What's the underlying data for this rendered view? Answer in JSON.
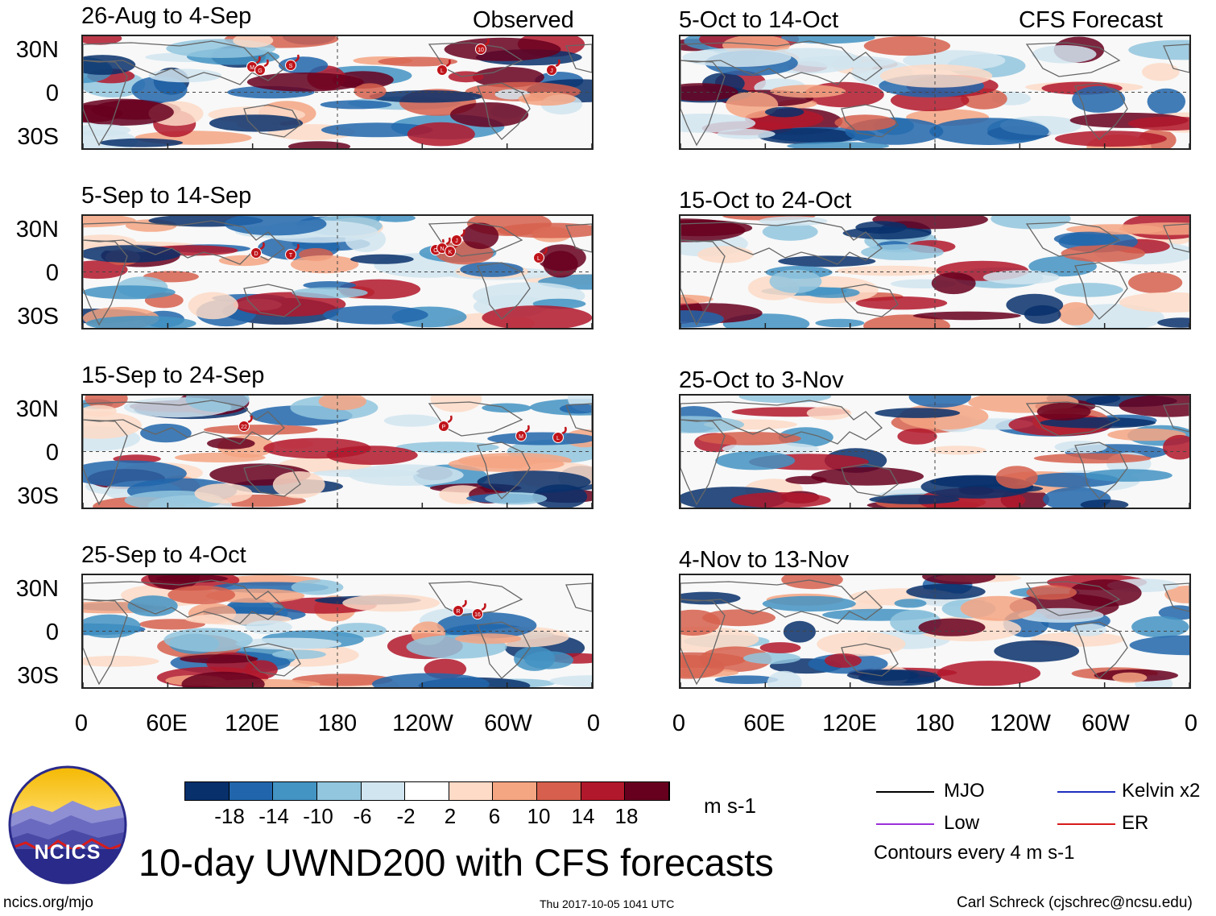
{
  "observed_label": "Observed",
  "forecast_label": "CFS Forecast",
  "observed_panels": [
    {
      "title": "26-Aug to 4-Sep",
      "storms": [
        "M",
        "G",
        "S",
        "L",
        "10",
        "J"
      ]
    },
    {
      "title": "5-Sep to 14-Sep",
      "storms": [
        "D",
        "T",
        "O",
        "N",
        "K",
        "J",
        "L"
      ]
    },
    {
      "title": "15-Sep to 24-Sep",
      "storms": [
        "22",
        "P",
        "M",
        "L"
      ]
    },
    {
      "title": "25-Sep to 4-Oct",
      "storms": [
        "R",
        "16"
      ]
    }
  ],
  "forecast_panels": [
    {
      "title": "5-Oct to 14-Oct"
    },
    {
      "title": "15-Oct to 24-Oct"
    },
    {
      "title": "25-Oct to 3-Nov"
    },
    {
      "title": "4-Nov to 13-Nov"
    }
  ],
  "lat_labels": [
    "30N",
    "0",
    "30S"
  ],
  "lon_labels": [
    "0",
    "60E",
    "120E",
    "180",
    "120W",
    "60W",
    "0"
  ],
  "colorbar": {
    "colors": [
      "#08306b",
      "#2166ac",
      "#4393c3",
      "#92c5de",
      "#d1e5f0",
      "#ffffff",
      "#fddbc7",
      "#f4a582",
      "#d6604d",
      "#b2182b",
      "#67001f"
    ],
    "tick_labels": [
      "-18",
      "-14",
      "-10",
      "-6",
      "-2",
      "2",
      "6",
      "10",
      "14",
      "18"
    ],
    "units": "m s-1"
  },
  "legend": {
    "items": [
      {
        "label": "MJO",
        "color": "#000000"
      },
      {
        "label": "Kelvin x2",
        "color": "#1f2fbf"
      },
      {
        "label": "Low",
        "color": "#9b30d9"
      },
      {
        "label": "ER",
        "color": "#d81b1b"
      }
    ],
    "note": "Contours every 4 m s-1"
  },
  "logo_text": "NCICS",
  "main_title": "10-day UWND200 with CFS forecasts",
  "footer": {
    "left": "ncics.org/mjo",
    "center": "Thu 2017-10-05 1041 UTC",
    "right": "Carl Schreck (cjschrec@ncsu.edu)"
  }
}
